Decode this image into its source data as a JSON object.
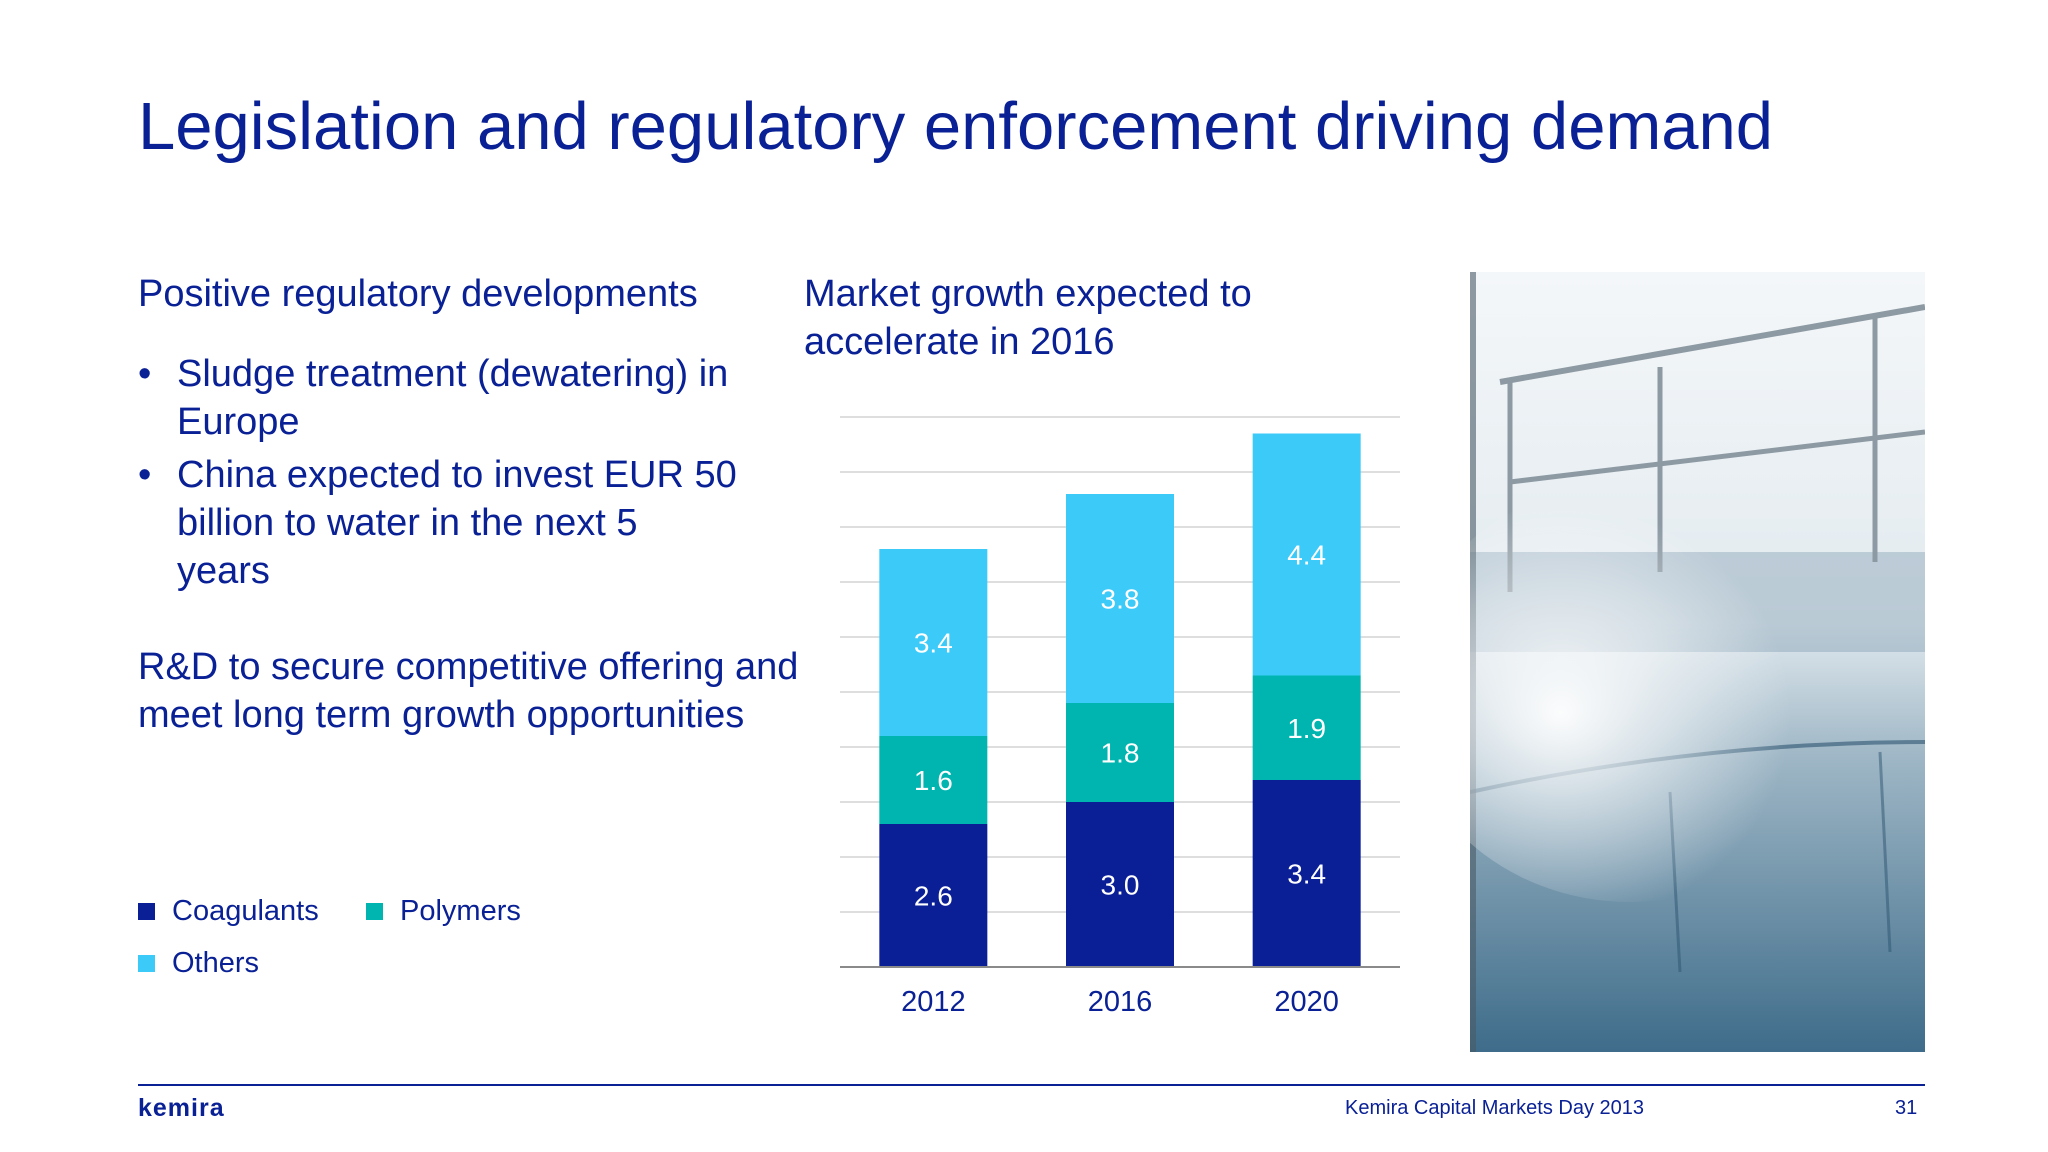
{
  "slide": {
    "title": "Legislation and regulatory enforcement driving demand",
    "left": {
      "heading": "Positive regulatory developments",
      "bullets": [
        "Sludge treatment (dewatering) in Europe",
        "China expected to invest EUR 50 billion to water in the next 5 years"
      ],
      "rd_text": "R&D to secure competitive offering and meet long term growth opportunities"
    },
    "chart_caption": "Market growth expected to accelerate in 2016",
    "footer": {
      "logo": "kemira",
      "event": "Kemira Capital Markets Day 2013",
      "page": "31"
    }
  },
  "colors": {
    "text": "#0a2196",
    "coagulants": "#0a1e96",
    "polymers": "#00b5b0",
    "others": "#3ccaf9",
    "grid": "#d4d4d4"
  },
  "chart_data": {
    "type": "bar",
    "stacked": true,
    "categories": [
      "2012",
      "2016",
      "2020"
    ],
    "series": [
      {
        "name": "Coagulants",
        "values": [
          2.6,
          3.0,
          3.4
        ]
      },
      {
        "name": "Polymers",
        "values": [
          1.6,
          1.8,
          1.9
        ]
      },
      {
        "name": "Others",
        "values": [
          3.4,
          3.8,
          4.4
        ]
      }
    ],
    "ylim": [
      0,
      10
    ],
    "grid": true,
    "legend": "bottom-left"
  }
}
